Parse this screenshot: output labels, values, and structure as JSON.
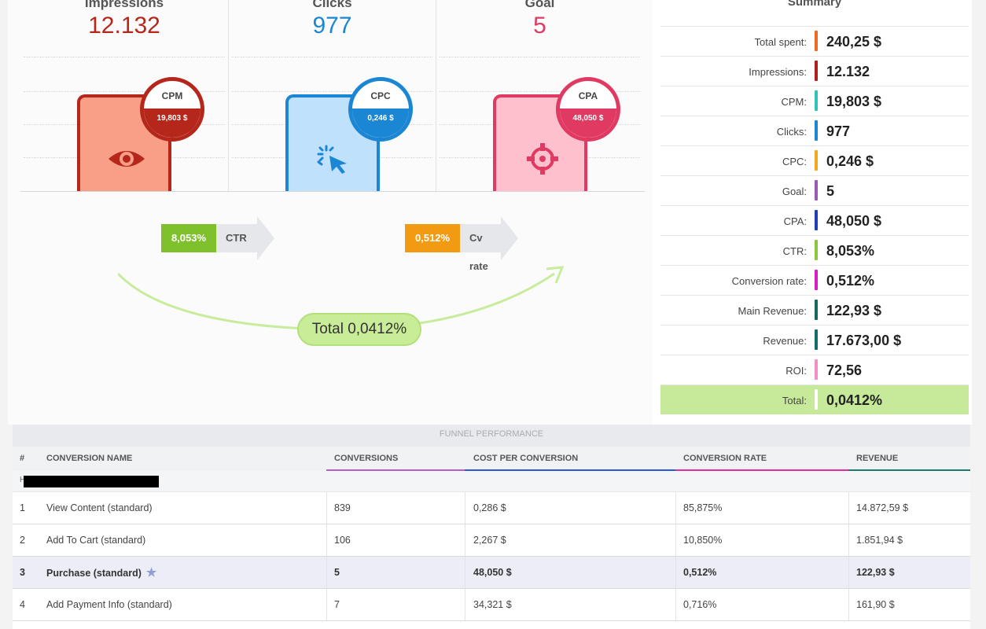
{
  "metrics": [
    {
      "title": "Impressions",
      "value": "12.132",
      "badge_label": "CPM",
      "badge_value": "19,803 $",
      "icon": "eye-icon",
      "color": "#b5261b",
      "card_fill": "#f99e87",
      "card_border": "#b5261b"
    },
    {
      "title": "Clicks",
      "value": "977",
      "badge_label": "CPC",
      "badge_value": "0,246 $",
      "icon": "cursor-click-icon",
      "color": "#1a86d4",
      "card_fill": "#bfe1fb",
      "card_border": "#1a86d4"
    },
    {
      "title": "Goal",
      "value": "5",
      "badge_label": "CPA",
      "badge_value": "48,050 $",
      "icon": "crosshair-icon",
      "color": "#e03a62",
      "card_fill": "#fec0cd",
      "card_border": "#e03a62"
    }
  ],
  "rates": {
    "ctr": {
      "value": "8,053%",
      "label": "CTR",
      "color": "#7ec12d"
    },
    "cv": {
      "value": "0,512%",
      "label": "Cv rate",
      "color": "#f29b12"
    },
    "total": "Total 0,0412%"
  },
  "summary": {
    "title": "Summary",
    "rows": [
      {
        "label": "Total spent:",
        "value": "240,25 $",
        "color": "#f06a26"
      },
      {
        "label": "Impressions:",
        "value": "12.132",
        "color": "#b21f1d"
      },
      {
        "label": "CPM:",
        "value": "19,803 $",
        "color": "#2ec4b6"
      },
      {
        "label": "Clicks:",
        "value": "977",
        "color": "#1a86d4"
      },
      {
        "label": "CPC:",
        "value": "0,246 $",
        "color": "#f2a81d"
      },
      {
        "label": "Goal:",
        "value": "5",
        "color": "#9b59b6"
      },
      {
        "label": "CPA:",
        "value": "48,050 $",
        "color": "#1f3fb8"
      },
      {
        "label": "CTR:",
        "value": "8,053%",
        "color": "#8cc63f"
      },
      {
        "label": "Conversion rate:",
        "value": "0,512%",
        "color": "#d91fbf"
      },
      {
        "label": "Main Revenue:",
        "value": "122,93 $",
        "color": "#146b5b"
      },
      {
        "label": "Revenue:",
        "value": "17.673,00 $",
        "color": "#146b6b"
      },
      {
        "label": "ROI:",
        "value": "72,56",
        "color": "#f48fc6"
      },
      {
        "label": "Total:",
        "value": "0,0412%",
        "color": "#ffffff"
      }
    ]
  },
  "funnel": {
    "title": "FUNNEL PERFORMANCE",
    "headers": [
      "#",
      "CONVERSION NAME",
      "CONVERSIONS",
      "COST PER CONVERSION",
      "CONVERSION RATE",
      "REVENUE"
    ],
    "header_line_colors": [
      "",
      "",
      "#b55ec7",
      "#2a5bd7",
      "#e02f9a",
      "#1b7a6c"
    ],
    "group_label": "H",
    "rows": [
      {
        "n": "1",
        "name": "View Content (standard)",
        "conversions": "839",
        "cost": "0,286 $",
        "rate": "85,875%",
        "revenue": "14.872,59 $",
        "highlight": false
      },
      {
        "n": "2",
        "name": "Add To Cart (standard)",
        "conversions": "106",
        "cost": "2,267 $",
        "rate": "10,850%",
        "revenue": "1.851,94 $",
        "highlight": false
      },
      {
        "n": "3",
        "name": "Purchase (standard)",
        "conversions": "5",
        "cost": "48,050 $",
        "rate": "0,512%",
        "revenue": "122,93 $",
        "highlight": true
      },
      {
        "n": "4",
        "name": "Add Payment Info (standard)",
        "conversions": "7",
        "cost": "34,321 $",
        "rate": "0,716%",
        "revenue": "161,90 $",
        "highlight": false
      }
    ]
  }
}
